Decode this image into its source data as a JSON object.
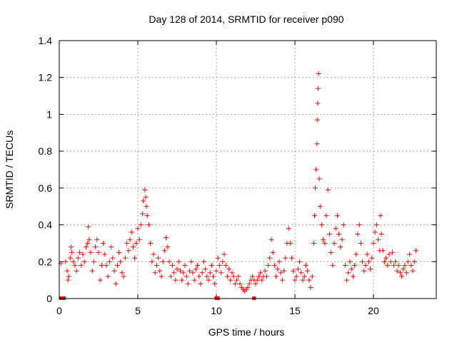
{
  "chart_data": {
    "type": "scatter",
    "title": "Day 128 of 2014, SRMTID for receiver p090",
    "xlabel": "GPS time / hours",
    "ylabel": "SRMTID / TECUs",
    "xlim": [
      0,
      24
    ],
    "ylim": [
      0,
      1.4
    ],
    "x_ticks": [
      "0",
      "5",
      "10",
      "15",
      "20"
    ],
    "y_ticks": [
      "0",
      "0.2",
      "0.4",
      "0.6",
      "0.8",
      "1",
      "1.2",
      "1.4"
    ],
    "x_tick_values": [
      0,
      5,
      10,
      15,
      20
    ],
    "y_tick_values": [
      0,
      0.2,
      0.4,
      0.6,
      0.8,
      1.0,
      1.2,
      1.4
    ],
    "grid": true,
    "marker": "+",
    "color": "#ff0000",
    "series": [
      {
        "name": "SRMTID",
        "points": [
          [
            0.1,
            0.19
          ],
          [
            0.4,
            0.2
          ],
          [
            0.5,
            0.15
          ],
          [
            0.55,
            0.1
          ],
          [
            0.6,
            0.12
          ],
          [
            0.7,
            0.22
          ],
          [
            0.75,
            0.28
          ],
          [
            0.8,
            0.25
          ],
          [
            0.9,
            0.2
          ],
          [
            1.0,
            0.18
          ],
          [
            1.1,
            0.15
          ],
          [
            1.2,
            0.22
          ],
          [
            1.3,
            0.25
          ],
          [
            1.4,
            0.18
          ],
          [
            1.5,
            0.24
          ],
          [
            1.6,
            0.2
          ],
          [
            1.7,
            0.28
          ],
          [
            1.8,
            0.3
          ],
          [
            1.85,
            0.39
          ],
          [
            1.9,
            0.32
          ],
          [
            2.0,
            0.25
          ],
          [
            2.1,
            0.15
          ],
          [
            2.2,
            0.2
          ],
          [
            2.3,
            0.28
          ],
          [
            2.4,
            0.32
          ],
          [
            2.5,
            0.25
          ],
          [
            2.6,
            0.1
          ],
          [
            2.7,
            0.18
          ],
          [
            2.8,
            0.3
          ],
          [
            2.9,
            0.24
          ],
          [
            3.0,
            0.18
          ],
          [
            3.1,
            0.12
          ],
          [
            3.2,
            0.2
          ],
          [
            3.3,
            0.28
          ],
          [
            3.4,
            0.22
          ],
          [
            3.5,
            0.15
          ],
          [
            3.6,
            0.08
          ],
          [
            3.7,
            0.18
          ],
          [
            3.8,
            0.25
          ],
          [
            3.9,
            0.2
          ],
          [
            4.0,
            0.14
          ],
          [
            4.1,
            0.12
          ],
          [
            4.2,
            0.22
          ],
          [
            4.3,
            0.3
          ],
          [
            4.4,
            0.26
          ],
          [
            4.5,
            0.32
          ],
          [
            4.6,
            0.36
          ],
          [
            4.7,
            0.28
          ],
          [
            4.8,
            0.22
          ],
          [
            4.9,
            0.3
          ],
          [
            5.0,
            0.38
          ],
          [
            5.1,
            0.32
          ],
          [
            5.2,
            0.4
          ],
          [
            5.3,
            0.46
          ],
          [
            5.35,
            0.53
          ],
          [
            5.45,
            0.59
          ],
          [
            5.5,
            0.55
          ],
          [
            5.55,
            0.5
          ],
          [
            5.6,
            0.45
          ],
          [
            5.7,
            0.4
          ],
          [
            5.8,
            0.3
          ],
          [
            5.9,
            0.2
          ],
          [
            6.0,
            0.24
          ],
          [
            6.1,
            0.14
          ],
          [
            6.2,
            0.18
          ],
          [
            6.3,
            0.22
          ],
          [
            6.4,
            0.15
          ],
          [
            6.5,
            0.12
          ],
          [
            6.6,
            0.2
          ],
          [
            6.7,
            0.26
          ],
          [
            6.8,
            0.33
          ],
          [
            6.9,
            0.28
          ],
          [
            7.0,
            0.2
          ],
          [
            7.1,
            0.12
          ],
          [
            7.2,
            0.18
          ],
          [
            7.3,
            0.14
          ],
          [
            7.4,
            0.1
          ],
          [
            7.5,
            0.16
          ],
          [
            7.6,
            0.2
          ],
          [
            7.7,
            0.15
          ],
          [
            7.8,
            0.1
          ],
          [
            7.9,
            0.14
          ],
          [
            8.0,
            0.18
          ],
          [
            8.1,
            0.12
          ],
          [
            8.2,
            0.08
          ],
          [
            8.3,
            0.15
          ],
          [
            8.4,
            0.2
          ],
          [
            8.5,
            0.14
          ],
          [
            8.6,
            0.1
          ],
          [
            8.7,
            0.16
          ],
          [
            8.8,
            0.18
          ],
          [
            8.9,
            0.12
          ],
          [
            9.0,
            0.08
          ],
          [
            9.1,
            0.14
          ],
          [
            9.2,
            0.2
          ],
          [
            9.3,
            0.16
          ],
          [
            9.4,
            0.12
          ],
          [
            9.5,
            0.1
          ],
          [
            9.6,
            0.14
          ],
          [
            9.7,
            0.18
          ],
          [
            9.8,
            0.12
          ],
          [
            9.9,
            0.08
          ],
          [
            10.0,
            0.15
          ],
          [
            10.1,
            0.22
          ],
          [
            10.2,
            0.18
          ],
          [
            10.3,
            0.14
          ],
          [
            10.4,
            0.2
          ],
          [
            10.5,
            0.24
          ],
          [
            10.6,
            0.18
          ],
          [
            10.7,
            0.12
          ],
          [
            10.8,
            0.16
          ],
          [
            10.9,
            0.1
          ],
          [
            11.0,
            0.14
          ],
          [
            11.1,
            0.12
          ],
          [
            11.2,
            0.08
          ],
          [
            11.3,
            0.1
          ],
          [
            11.4,
            0.12
          ],
          [
            11.5,
            0.08
          ],
          [
            11.6,
            0.06
          ],
          [
            11.7,
            0.05
          ],
          [
            11.8,
            0.04
          ],
          [
            11.9,
            0.05
          ],
          [
            12.0,
            0.06
          ],
          [
            12.1,
            0.08
          ],
          [
            12.2,
            0.1
          ],
          [
            12.3,
            0.12
          ],
          [
            12.4,
            0.1
          ],
          [
            12.5,
            0.08
          ],
          [
            12.6,
            0.1
          ],
          [
            12.7,
            0.12
          ],
          [
            12.8,
            0.14
          ],
          [
            12.9,
            0.1
          ],
          [
            13.0,
            0.12
          ],
          [
            13.1,
            0.15
          ],
          [
            13.2,
            0.12
          ],
          [
            13.3,
            0.18
          ],
          [
            13.4,
            0.22
          ],
          [
            13.5,
            0.32
          ],
          [
            13.6,
            0.25
          ],
          [
            13.7,
            0.18
          ],
          [
            13.8,
            0.12
          ],
          [
            13.9,
            0.16
          ],
          [
            14.0,
            0.2
          ],
          [
            14.1,
            0.14
          ],
          [
            14.2,
            0.1
          ],
          [
            14.3,
            0.15
          ],
          [
            14.4,
            0.22
          ],
          [
            14.5,
            0.3
          ],
          [
            14.6,
            0.38
          ],
          [
            14.7,
            0.3
          ],
          [
            14.8,
            0.22
          ],
          [
            14.9,
            0.15
          ],
          [
            15.0,
            0.1
          ],
          [
            15.1,
            0.12
          ],
          [
            15.2,
            0.16
          ],
          [
            15.3,
            0.2
          ],
          [
            15.4,
            0.14
          ],
          [
            15.5,
            0.1
          ],
          [
            15.6,
            0.12
          ],
          [
            15.7,
            0.18
          ],
          [
            15.8,
            0.15
          ],
          [
            15.9,
            0.1
          ],
          [
            16.0,
            0.06
          ],
          [
            16.1,
            0.12
          ],
          [
            16.2,
            0.3
          ],
          [
            16.25,
            0.45
          ],
          [
            16.3,
            0.6
          ],
          [
            16.35,
            0.7
          ],
          [
            16.4,
            0.84
          ],
          [
            16.42,
            0.97
          ],
          [
            16.45,
            1.06
          ],
          [
            16.48,
            1.14
          ],
          [
            16.5,
            1.22
          ],
          [
            16.55,
            0.65
          ],
          [
            16.6,
            0.5
          ],
          [
            16.7,
            0.4
          ],
          [
            16.8,
            0.32
          ],
          [
            16.9,
            0.3
          ],
          [
            17.0,
            0.45
          ],
          [
            17.1,
            0.59
          ],
          [
            17.2,
            0.35
          ],
          [
            17.3,
            0.25
          ],
          [
            17.4,
            0.18
          ],
          [
            17.5,
            0.3
          ],
          [
            17.6,
            0.38
          ],
          [
            17.7,
            0.45
          ],
          [
            17.8,
            0.35
          ],
          [
            17.9,
            0.28
          ],
          [
            18.0,
            0.32
          ],
          [
            18.1,
            0.4
          ],
          [
            18.2,
            0.18
          ],
          [
            18.3,
            0.1
          ],
          [
            18.4,
            0.14
          ],
          [
            18.5,
            0.2
          ],
          [
            18.6,
            0.16
          ],
          [
            18.7,
            0.12
          ],
          [
            18.8,
            0.18
          ],
          [
            18.9,
            0.24
          ],
          [
            19.0,
            0.35
          ],
          [
            19.1,
            0.4
          ],
          [
            19.2,
            0.3
          ],
          [
            19.3,
            0.2
          ],
          [
            19.4,
            0.15
          ],
          [
            19.5,
            0.18
          ],
          [
            19.6,
            0.24
          ],
          [
            19.7,
            0.2
          ],
          [
            19.8,
            0.16
          ],
          [
            19.9,
            0.22
          ],
          [
            20.0,
            0.3
          ],
          [
            20.1,
            0.36
          ],
          [
            20.2,
            0.4
          ],
          [
            20.3,
            0.32
          ],
          [
            20.4,
            0.26
          ],
          [
            20.45,
            0.45
          ],
          [
            20.5,
            0.35
          ],
          [
            20.6,
            0.26
          ],
          [
            20.7,
            0.2
          ],
          [
            20.8,
            0.22
          ],
          [
            20.9,
            0.18
          ],
          [
            21.0,
            0.24
          ],
          [
            21.1,
            0.2
          ],
          [
            21.2,
            0.25
          ],
          [
            21.3,
            0.18
          ],
          [
            21.4,
            0.2
          ],
          [
            21.5,
            0.15
          ],
          [
            21.6,
            0.18
          ],
          [
            21.7,
            0.14
          ],
          [
            21.8,
            0.12
          ],
          [
            21.9,
            0.16
          ],
          [
            22.0,
            0.18
          ],
          [
            22.1,
            0.14
          ],
          [
            22.2,
            0.2
          ],
          [
            22.3,
            0.24
          ],
          [
            22.4,
            0.18
          ],
          [
            22.5,
            0.15
          ],
          [
            22.6,
            0.2
          ],
          [
            22.7,
            0.26
          ]
        ],
        "zero_markers": [
          0.1,
          0.3,
          10.0,
          10.1,
          12.4
        ]
      }
    ]
  }
}
